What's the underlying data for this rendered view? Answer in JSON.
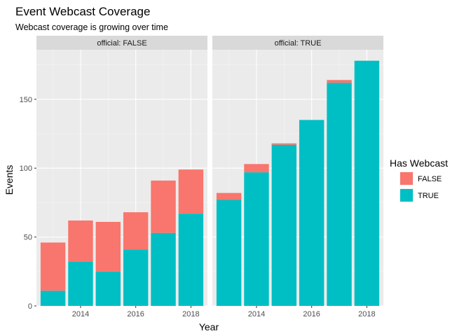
{
  "chart_data": {
    "type": "bar",
    "stacked": true,
    "title": "Event Webcast Coverage",
    "subtitle": "Webcast coverage is growing over time",
    "xlabel": "Year",
    "ylabel": "Events",
    "x": [
      2013,
      2014,
      2015,
      2016,
      2017,
      2018
    ],
    "x_ticks": [
      "2014",
      "2016",
      "2018"
    ],
    "y_ticks": [
      "0",
      "50",
      "100",
      "150"
    ],
    "ylim": [
      0,
      186
    ],
    "legend": {
      "title": "Has Webcast",
      "entries": [
        {
          "label": "FALSE",
          "color": "#F8766D"
        },
        {
          "label": "TRUE",
          "color": "#00BFC4"
        }
      ],
      "position": "right"
    },
    "facets": [
      {
        "label": "official: FALSE",
        "series": [
          {
            "name": "TRUE",
            "values": [
              11,
              32,
              25,
              41,
              53,
              67
            ]
          },
          {
            "name": "FALSE",
            "values": [
              35,
              30,
              36,
              27,
              38,
              32
            ]
          }
        ]
      },
      {
        "label": "official: TRUE",
        "series": [
          {
            "name": "TRUE",
            "values": [
              77,
              97,
              117,
              135,
              162,
              178
            ]
          },
          {
            "name": "FALSE",
            "values": [
              5,
              6,
              1,
              0,
              2,
              0
            ]
          }
        ]
      }
    ],
    "grid": true
  }
}
